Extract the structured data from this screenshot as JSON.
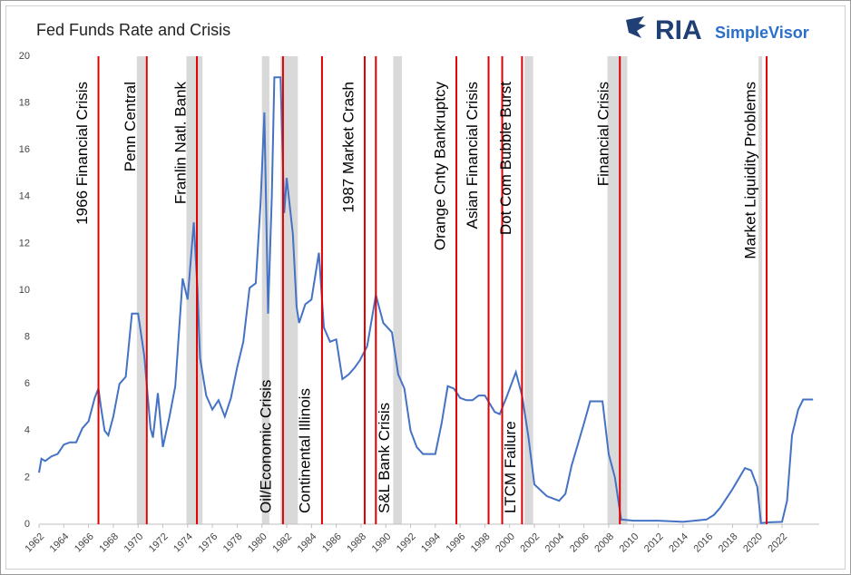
{
  "chart_data": {
    "type": "line",
    "title": "Fed Funds Rate and Crisis",
    "logo": {
      "mark": "RIA",
      "name": "SimpleVisor"
    },
    "color": "#4472c4",
    "x": [
      1962.0,
      1962.2,
      1962.5,
      1963.0,
      1963.5,
      1964.0,
      1964.5,
      1965.0,
      1965.5,
      1966.0,
      1966.5,
      1966.8,
      1967.0,
      1967.3,
      1967.6,
      1968.0,
      1968.5,
      1969.0,
      1969.5,
      1970.0,
      1970.5,
      1971.0,
      1971.2,
      1971.6,
      1972.0,
      1972.5,
      1973.0,
      1973.6,
      1974.0,
      1974.5,
      1974.8,
      1975.0,
      1975.5,
      1976.0,
      1976.5,
      1977.0,
      1977.5,
      1978.0,
      1978.5,
      1979.0,
      1979.5,
      1979.9,
      1980.2,
      1980.5,
      1980.8,
      1981.0,
      1981.5,
      1981.8,
      1982.0,
      1982.5,
      1982.8,
      1983.0,
      1983.5,
      1984.0,
      1984.6,
      1985.0,
      1985.5,
      1986.0,
      1986.5,
      1987.0,
      1987.5,
      1987.9,
      1988.5,
      1989.2,
      1989.8,
      1990.5,
      1991.0,
      1991.5,
      1992.0,
      1992.5,
      1993.0,
      1994.0,
      1994.5,
      1995.0,
      1995.5,
      1996.0,
      1996.5,
      1997.0,
      1997.5,
      1998.0,
      1998.8,
      1999.2,
      1999.8,
      2000.5,
      2001.0,
      2001.5,
      2002.0,
      2003.0,
      2004.0,
      2004.5,
      2005.0,
      2006.0,
      2006.5,
      2007.5,
      2008.0,
      2008.5,
      2009.0,
      2010.0,
      2012.0,
      2014.0,
      2015.9,
      2016.5,
      2017.0,
      2018.0,
      2019.0,
      2019.5,
      2020.0,
      2020.3,
      2021.0,
      2022.0,
      2022.4,
      2022.8,
      2023.3,
      2023.7,
      2024.5
    ],
    "values": [
      2.2,
      2.8,
      2.7,
      2.9,
      3.0,
      3.4,
      3.5,
      3.5,
      4.1,
      4.4,
      5.4,
      5.8,
      5.0,
      4.0,
      3.8,
      4.6,
      6.0,
      6.3,
      9.0,
      9.0,
      7.2,
      4.1,
      3.7,
      5.6,
      3.3,
      4.5,
      5.9,
      10.5,
      9.6,
      12.9,
      10.0,
      7.1,
      5.5,
      4.9,
      5.3,
      4.6,
      5.4,
      6.7,
      7.8,
      10.1,
      10.3,
      13.8,
      17.6,
      9.0,
      14.0,
      19.1,
      19.1,
      13.3,
      14.8,
      12.4,
      9.3,
      8.6,
      9.4,
      9.6,
      11.6,
      8.4,
      7.8,
      7.9,
      6.2,
      6.4,
      6.7,
      7.0,
      7.6,
      9.8,
      8.6,
      8.2,
      6.4,
      5.8,
      4.0,
      3.3,
      3.0,
      3.0,
      4.3,
      5.9,
      5.8,
      5.4,
      5.3,
      5.3,
      5.5,
      5.5,
      4.8,
      4.7,
      5.5,
      6.5,
      5.5,
      3.8,
      1.7,
      1.2,
      1.0,
      1.3,
      2.5,
      4.3,
      5.25,
      5.25,
      3.0,
      2.0,
      0.2,
      0.15,
      0.15,
      0.1,
      0.2,
      0.4,
      0.7,
      1.5,
      2.4,
      2.3,
      1.6,
      0.05,
      0.08,
      0.1,
      1.0,
      3.8,
      4.9,
      5.33,
      5.33
    ],
    "xlim": [
      1962,
      2025
    ],
    "xticks": [
      1962,
      1964,
      1966,
      1968,
      1970,
      1972,
      1974,
      1976,
      1978,
      1980,
      1982,
      1984,
      1986,
      1988,
      1990,
      1992,
      1994,
      1996,
      1998,
      2000,
      2002,
      2004,
      2006,
      2008,
      2010,
      2012,
      2014,
      2016,
      2018,
      2020,
      2022
    ],
    "ylim": [
      0,
      20
    ],
    "yticks": [
      0,
      2,
      4,
      6,
      8,
      10,
      12,
      14,
      16,
      18,
      20
    ],
    "recession_color": "#d9d9d9",
    "recessions": [
      [
        1969.9,
        1970.6
      ],
      [
        1973.9,
        1975.2
      ],
      [
        1980.0,
        1980.6
      ],
      [
        1981.5,
        1982.9
      ],
      [
        1990.6,
        1991.3
      ],
      [
        2001.2,
        2001.9
      ],
      [
        2007.9,
        2009.5
      ],
      [
        2020.1,
        2020.4
      ]
    ],
    "crisis_color": "#e00000",
    "crises": [
      {
        "label": "1966 Financial Crisis",
        "x": 1966.8,
        "label_position": "top"
      },
      {
        "label": "Penn Central",
        "x": 1970.7,
        "label_position": "top"
      },
      {
        "label": "Franlin Natl. Bank",
        "x": 1974.75,
        "label_position": "top"
      },
      {
        "label": "Oil/Economic Crisis",
        "x": 1981.7,
        "label_position": "bottom"
      },
      {
        "label": "Continental Illinois",
        "x": 1984.85,
        "label_position": "bottom"
      },
      {
        "label": "1987 Market Crash",
        "x": 1988.3,
        "label_position": "top"
      },
      {
        "label": "S&L Bank Crisis",
        "x": 1989.2,
        "label_position": "bottom"
      },
      {
        "label": "Orange Cnty Bankruptcy",
        "x": 1995.7,
        "label_position": "top"
      },
      {
        "label": "Asian Financial Crisis",
        "x": 1998.3,
        "label_position": "top"
      },
      {
        "label": "LTCM Failure",
        "x": 1999.4,
        "label_position": "bottom"
      },
      {
        "label": "Dot Com Bubble Burst",
        "x": 2001.0,
        "label_position": "top"
      },
      {
        "label": "Financial Crisis",
        "x": 2008.9,
        "label_position": "top"
      },
      {
        "label": "Market Liquidity Problems",
        "x": 2020.75,
        "label_position": "top"
      }
    ]
  }
}
